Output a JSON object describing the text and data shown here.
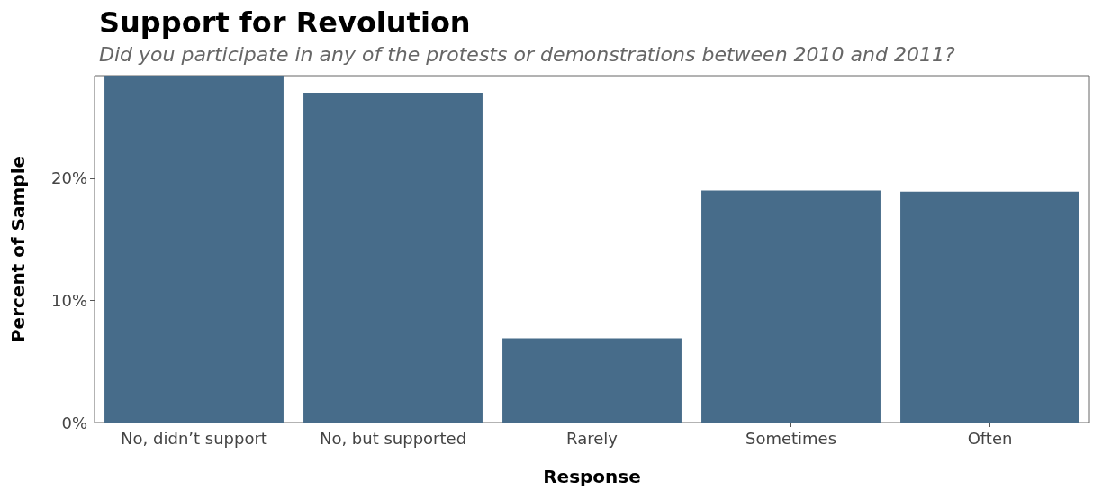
{
  "chart_data": {
    "type": "bar",
    "title": "Support for Revolution",
    "subtitle": "Did you participate in any of the protests or demonstrations between 2010 and 2011?",
    "xlabel": "Response",
    "ylabel": "Percent of Sample",
    "categories": [
      "No, didn’t support",
      "No, but supported",
      "Rarely",
      "Sometimes",
      "Often"
    ],
    "values": [
      28.4,
      27.0,
      6.9,
      19.0,
      18.9
    ],
    "color": "#476c8a",
    "ylim": [
      0,
      28.4
    ],
    "yticks": [
      {
        "value": 0,
        "label": "0%"
      },
      {
        "value": 10,
        "label": "10%"
      },
      {
        "value": 20,
        "label": "20%"
      }
    ],
    "grid": false
  }
}
